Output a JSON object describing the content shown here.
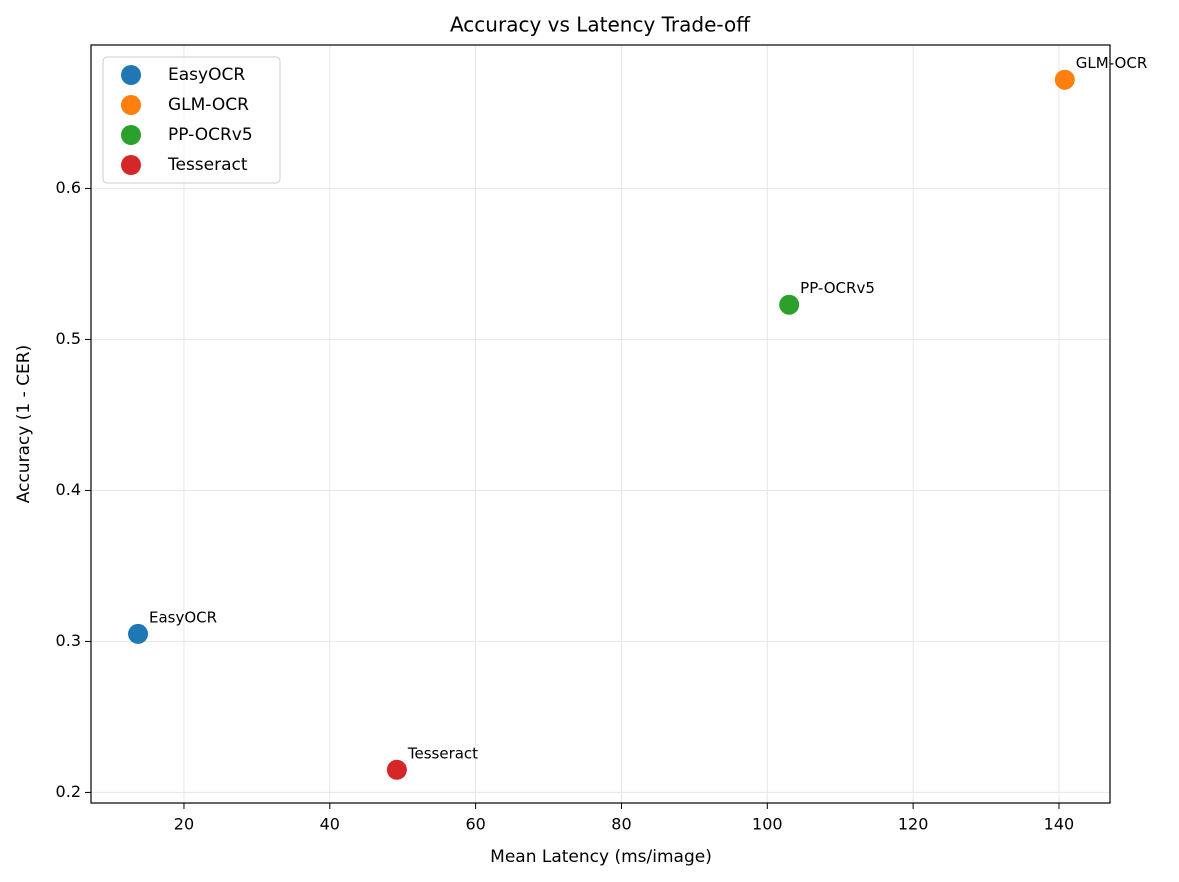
{
  "chart_data": {
    "type": "scatter",
    "title": "Accuracy vs Latency Trade-off",
    "x_label": "Mean Latency (ms/image)",
    "y_label": "Accuracy (1 - CER)",
    "series": [
      {
        "name": "EasyOCR",
        "color": "#1f77b4",
        "x": [
          13.7
        ],
        "values": [
          0.305
        ]
      },
      {
        "name": "GLM-OCR",
        "color": "#ff7f0e",
        "x": [
          140.8
        ],
        "values": [
          0.672
        ]
      },
      {
        "name": "PP-OCRv5",
        "color": "#2ca02c",
        "x": [
          103.0
        ],
        "values": [
          0.523
        ]
      },
      {
        "name": "Tesseract",
        "color": "#d62728",
        "x": [
          49.2
        ],
        "values": [
          0.215
        ]
      }
    ],
    "xlim": [
      7.25,
      147
    ],
    "xticks": [
      20,
      40,
      60,
      80,
      100,
      120,
      140
    ],
    "ylim": [
      0.193,
      0.695
    ],
    "yticks": [
      0.2,
      0.3,
      0.4,
      0.5,
      0.6
    ],
    "grid": true,
    "legend": "upper left"
  }
}
